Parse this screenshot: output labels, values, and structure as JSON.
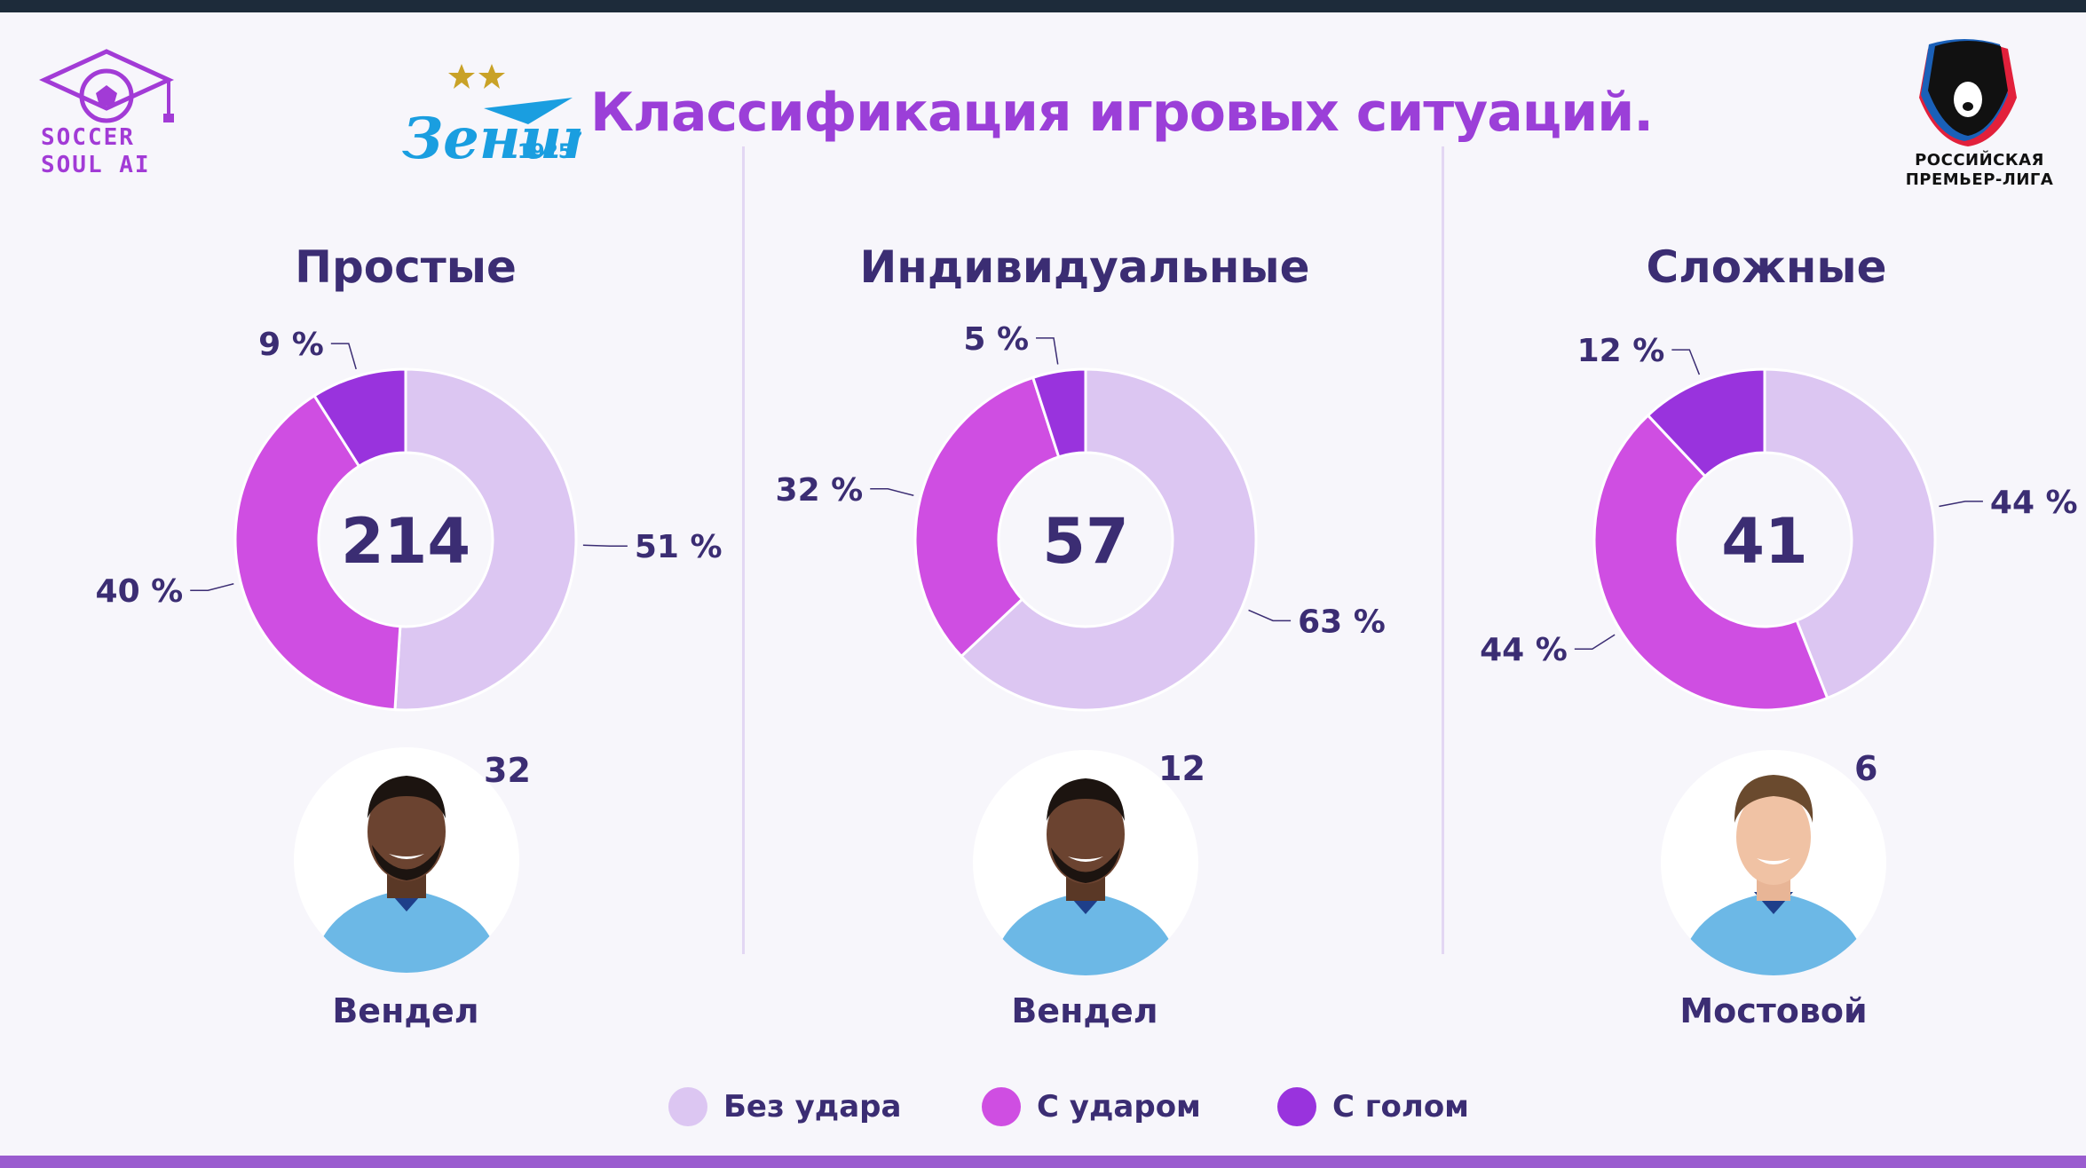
{
  "title": "Классификация игровых ситуаций.",
  "logos": {
    "left_line1": "SOCCER",
    "left_line2": "SOUL AI",
    "club_word": "Зенит",
    "club_year": "1925",
    "league_line1": "РОССИЙСКАЯ",
    "league_line2": "ПРЕМЬЕР-ЛИГА"
  },
  "colors": {
    "no_shot": "#dcc6f2",
    "with_shot": "#cf4ee2",
    "with_goal": "#9933dd",
    "text": "#3b2d73",
    "title": "#9b3fd8"
  },
  "legend": [
    {
      "label": "Без удара",
      "color": "#dcc6f2"
    },
    {
      "label": "С ударом",
      "color": "#cf4ee2"
    },
    {
      "label": "С голом",
      "color": "#9933dd"
    }
  ],
  "chart_data": [
    {
      "type": "pie",
      "title": "Простые",
      "total": "214",
      "categories": [
        "Без удара",
        "С ударом",
        "С голом"
      ],
      "values": [
        51,
        40,
        9
      ],
      "labels": [
        "51 %",
        "40 %",
        "9 %"
      ],
      "player": {
        "name": "Вендел",
        "count": "32"
      }
    },
    {
      "type": "pie",
      "title": "Индивидуальные",
      "total": "57",
      "categories": [
        "Без удара",
        "С ударом",
        "С голом"
      ],
      "values": [
        63,
        32,
        5
      ],
      "labels": [
        "63 %",
        "32 %",
        "5 %"
      ],
      "player": {
        "name": "Вендел",
        "count": "12"
      }
    },
    {
      "type": "pie",
      "title": "Сложные",
      "total": "41",
      "categories": [
        "Без удара",
        "С ударом",
        "С голом"
      ],
      "values": [
        44,
        44,
        12
      ],
      "labels": [
        "44 %",
        "44 %",
        "12 %"
      ],
      "player": {
        "name": "Мостовой",
        "count": "6"
      }
    }
  ]
}
